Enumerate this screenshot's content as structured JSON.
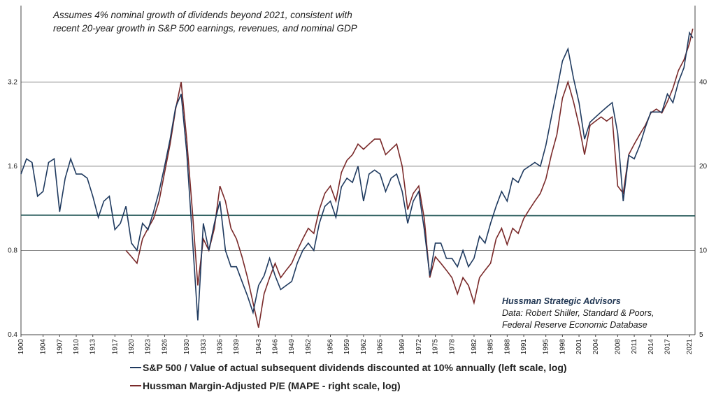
{
  "annotation": {
    "assumption_line1": "Assumes 4% nominal growth of dividends beyond 2021, consistent with",
    "assumption_line2": "recent 20-year growth in S&P 500 earnings, revenues, and nominal GDP",
    "source_firm": "Hussman Strategic Advisors",
    "source_line1": "Data: Robert Shiller, Standard & Poors,",
    "source_line2": "Federal Reserve Economic Database"
  },
  "legend": {
    "series1": "S&P 500 / Value of actual subsequent dividends discounted at 10% annually (left scale, log)",
    "series2": "Hussman Margin-Adjusted P/E (MAPE - right scale, log)"
  },
  "colors": {
    "series1": "#1f3a5f",
    "series2": "#7a2a2a",
    "reference": "#2e5f5f",
    "grid": "#8a8a8a"
  },
  "chart_data": {
    "type": "line",
    "scale": "log",
    "x_ticks": [
      "1900",
      "1904",
      "1907",
      "1910",
      "1913",
      "1917",
      "1920",
      "1923",
      "1926",
      "1930",
      "1933",
      "1936",
      "1939",
      "1943",
      "1946",
      "1949",
      "1952",
      "1956",
      "1959",
      "1962",
      "1965",
      "1969",
      "1972",
      "1975",
      "1978",
      "1982",
      "1985",
      "1988",
      "1991",
      "1995",
      "1998",
      "2001",
      "2004",
      "2008",
      "2011",
      "2014",
      "2017",
      "2021"
    ],
    "x_range": [
      1900,
      2022
    ],
    "y_left_ticks": [
      "0.4",
      "0.8",
      "1.6",
      "3.2"
    ],
    "y_left_range": [
      0.4,
      6.0
    ],
    "y_right_ticks": [
      "5",
      "10",
      "20",
      "40"
    ],
    "y_right_range": [
      5,
      75
    ],
    "reference_line": {
      "value_left": 1.07,
      "label": ""
    },
    "series": [
      {
        "name": "S&P 500 / Value of actual subsequent dividends discounted at 10% annually (left scale, log)",
        "axis": "left",
        "x": [
          1900,
          1901,
          1902,
          1903,
          1904,
          1905,
          1906,
          1907,
          1908,
          1909,
          1910,
          1911,
          1912,
          1913,
          1914,
          1915,
          1916,
          1917,
          1918,
          1919,
          1920,
          1921,
          1922,
          1923,
          1924,
          1925,
          1926,
          1927,
          1928,
          1929,
          1930,
          1931,
          1932,
          1933,
          1934,
          1935,
          1936,
          1937,
          1938,
          1939,
          1940,
          1941,
          1942,
          1943,
          1944,
          1945,
          1946,
          1947,
          1948,
          1949,
          1950,
          1951,
          1952,
          1953,
          1954,
          1955,
          1956,
          1957,
          1958,
          1959,
          1960,
          1961,
          1962,
          1963,
          1964,
          1965,
          1966,
          1967,
          1968,
          1969,
          1970,
          1971,
          1972,
          1973,
          1974,
          1975,
          1976,
          1977,
          1978,
          1979,
          1980,
          1981,
          1982,
          1983,
          1984,
          1985,
          1986,
          1987,
          1988,
          1989,
          1990,
          1991,
          1992,
          1993,
          1994,
          1995,
          1996,
          1997,
          1998,
          1999,
          2000,
          2001,
          2002,
          2003,
          2004,
          2005,
          2006,
          2007,
          2008,
          2009,
          2010,
          2011,
          2012,
          2013,
          2014,
          2015,
          2016,
          2017,
          2018,
          2019,
          2020,
          2021,
          2021.6
        ],
        "values": [
          1.5,
          1.7,
          1.65,
          1.25,
          1.3,
          1.65,
          1.7,
          1.1,
          1.45,
          1.7,
          1.5,
          1.5,
          1.45,
          1.25,
          1.05,
          1.2,
          1.25,
          0.95,
          1.0,
          1.15,
          0.85,
          0.8,
          1.0,
          0.95,
          1.1,
          1.3,
          1.6,
          2.0,
          2.6,
          2.9,
          1.8,
          0.9,
          0.45,
          1.0,
          0.8,
          1.0,
          1.2,
          0.8,
          0.7,
          0.7,
          0.62,
          0.55,
          0.48,
          0.6,
          0.65,
          0.75,
          0.65,
          0.58,
          0.6,
          0.62,
          0.72,
          0.8,
          0.85,
          0.8,
          1.0,
          1.15,
          1.2,
          1.05,
          1.35,
          1.45,
          1.4,
          1.6,
          1.2,
          1.5,
          1.55,
          1.5,
          1.3,
          1.45,
          1.5,
          1.3,
          1.0,
          1.2,
          1.3,
          0.95,
          0.65,
          0.85,
          0.85,
          0.75,
          0.75,
          0.7,
          0.8,
          0.7,
          0.75,
          0.9,
          0.85,
          1.0,
          1.15,
          1.3,
          1.2,
          1.45,
          1.4,
          1.55,
          1.6,
          1.65,
          1.6,
          1.9,
          2.4,
          3.0,
          3.8,
          4.2,
          3.3,
          2.7,
          2.0,
          2.3,
          2.4,
          2.5,
          2.6,
          2.7,
          2.1,
          1.2,
          1.75,
          1.7,
          1.9,
          2.2,
          2.5,
          2.5,
          2.5,
          2.9,
          2.7,
          3.2,
          3.6,
          4.8,
          4.6
        ]
      },
      {
        "name": "Hussman Margin-Adjusted P/E (MAPE - right scale, log)",
        "axis": "right",
        "x": [
          1919,
          1920,
          1921,
          1922,
          1923,
          1924,
          1925,
          1926,
          1927,
          1928,
          1929,
          1930,
          1931,
          1932,
          1933,
          1934,
          1935,
          1936,
          1937,
          1938,
          1939,
          1940,
          1941,
          1942,
          1943,
          1944,
          1945,
          1946,
          1947,
          1948,
          1949,
          1950,
          1951,
          1952,
          1953,
          1954,
          1955,
          1956,
          1957,
          1958,
          1959,
          1960,
          1961,
          1962,
          1963,
          1964,
          1965,
          1966,
          1967,
          1968,
          1969,
          1970,
          1971,
          1972,
          1973,
          1974,
          1975,
          1976,
          1977,
          1978,
          1979,
          1980,
          1981,
          1982,
          1983,
          1984,
          1985,
          1986,
          1987,
          1988,
          1989,
          1990,
          1991,
          1992,
          1993,
          1994,
          1995,
          1996,
          1997,
          1998,
          1999,
          2000,
          2001,
          2002,
          2003,
          2004,
          2005,
          2006,
          2007,
          2008,
          2009,
          2010,
          2011,
          2012,
          2013,
          2014,
          2015,
          2016,
          2017,
          2018,
          2019,
          2020,
          2021,
          2021.6
        ],
        "values": [
          10,
          9.5,
          9,
          11,
          12,
          13,
          15,
          19,
          24,
          32,
          40,
          25,
          14,
          7.5,
          11,
          10,
          12,
          17,
          15,
          12,
          11,
          9.5,
          8,
          6.5,
          5.3,
          7,
          8,
          9,
          8,
          8.5,
          9,
          10,
          11,
          12,
          11.5,
          14,
          16,
          17,
          15,
          19,
          21,
          22,
          24,
          23,
          24,
          25,
          25,
          22,
          23,
          24,
          20,
          14,
          16,
          17,
          13,
          8,
          9.5,
          9,
          8.5,
          8,
          7,
          8,
          7.5,
          6.5,
          8,
          8.5,
          9,
          11,
          12,
          10.5,
          12,
          11.5,
          13,
          14,
          15,
          16,
          18,
          22,
          26,
          35,
          40,
          34,
          28,
          22,
          28,
          29,
          30,
          29,
          30,
          17,
          16,
          22,
          24,
          26,
          28,
          31,
          32,
          31,
          34,
          38,
          44,
          48,
          55,
          62
        ]
      }
    ]
  }
}
